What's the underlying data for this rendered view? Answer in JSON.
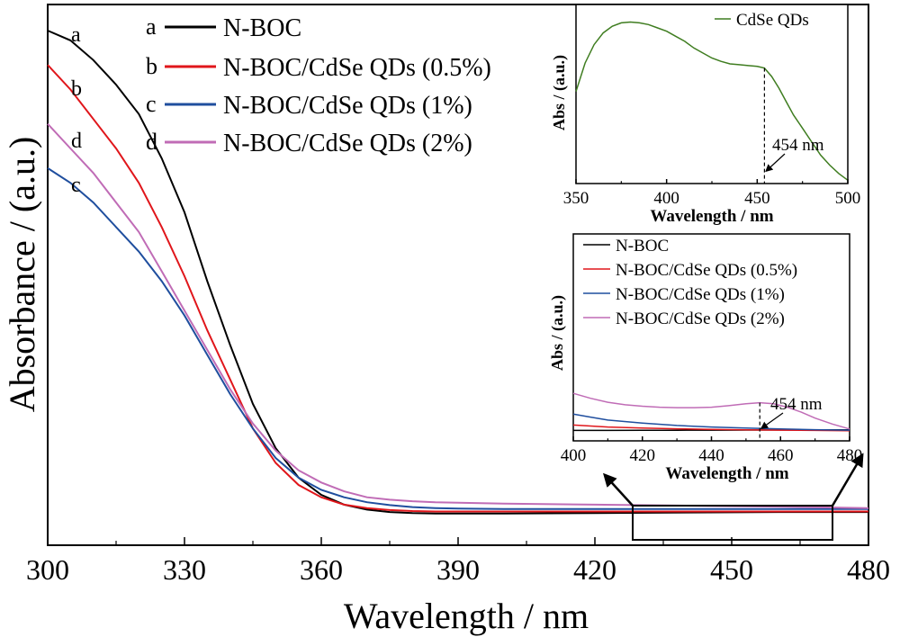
{
  "chart_data": [
    {
      "type": "line",
      "xlabel": "Wavelength / nm",
      "ylabel": "Absorbance / (a.u.)",
      "xlim": [
        300,
        480
      ],
      "xticks": [
        "300",
        "330",
        "360",
        "390",
        "420",
        "450",
        "480"
      ],
      "ylim": [
        0,
        1
      ],
      "grid": false,
      "legend": "top-left",
      "legend_entries": [
        {
          "key": "a",
          "label": "N-BOC"
        },
        {
          "key": "b",
          "label": "N-BOC/CdSe QDs (0.5%)"
        },
        {
          "key": "c",
          "label": "N-BOC/CdSe QDs (1%)"
        },
        {
          "key": "d",
          "label": "N-BOC/CdSe QDs (2%)"
        }
      ],
      "series": [
        {
          "name": "N-BOC",
          "tag": "a",
          "color": "#000000",
          "x": [
            300,
            305,
            310,
            315,
            320,
            325,
            330,
            335,
            340,
            345,
            350,
            355,
            360,
            365,
            370,
            375,
            380,
            385,
            390,
            400,
            420,
            440,
            460,
            480
          ],
          "y": [
            1.0,
            0.98,
            0.94,
            0.89,
            0.83,
            0.74,
            0.63,
            0.49,
            0.36,
            0.24,
            0.15,
            0.09,
            0.055,
            0.035,
            0.025,
            0.02,
            0.018,
            0.017,
            0.017,
            0.017,
            0.018,
            0.019,
            0.02,
            0.02
          ]
        },
        {
          "name": "N-BOC/CdSe QDs (0.5%)",
          "tag": "b",
          "color": "#e0161b",
          "x": [
            300,
            305,
            310,
            315,
            320,
            325,
            330,
            335,
            340,
            345,
            350,
            355,
            360,
            365,
            370,
            375,
            380,
            385,
            390,
            400,
            420,
            440,
            460,
            480
          ],
          "y": [
            0.93,
            0.88,
            0.82,
            0.76,
            0.69,
            0.6,
            0.5,
            0.39,
            0.29,
            0.19,
            0.12,
            0.075,
            0.05,
            0.035,
            0.028,
            0.024,
            0.022,
            0.021,
            0.021,
            0.021,
            0.021,
            0.021,
            0.021,
            0.021
          ]
        },
        {
          "name": "N-BOC/CdSe QDs (1%)",
          "tag": "c",
          "color": "#1f4e9e",
          "x": [
            300,
            305,
            310,
            315,
            320,
            325,
            330,
            335,
            340,
            345,
            350,
            355,
            360,
            365,
            370,
            375,
            380,
            385,
            390,
            400,
            420,
            440,
            460,
            480
          ],
          "y": [
            0.72,
            0.69,
            0.65,
            0.6,
            0.55,
            0.49,
            0.42,
            0.34,
            0.26,
            0.19,
            0.13,
            0.09,
            0.065,
            0.05,
            0.04,
            0.034,
            0.03,
            0.028,
            0.027,
            0.026,
            0.026,
            0.026,
            0.026,
            0.026
          ]
        },
        {
          "name": "N-BOC/CdSe QDs (2%)",
          "tag": "d",
          "color": "#c06cb6",
          "x": [
            300,
            305,
            310,
            315,
            320,
            325,
            330,
            335,
            340,
            345,
            350,
            355,
            360,
            365,
            370,
            375,
            380,
            385,
            390,
            400,
            420,
            440,
            460,
            480
          ],
          "y": [
            0.81,
            0.76,
            0.71,
            0.65,
            0.59,
            0.51,
            0.43,
            0.35,
            0.27,
            0.2,
            0.145,
            0.105,
            0.08,
            0.062,
            0.05,
            0.045,
            0.042,
            0.04,
            0.039,
            0.037,
            0.035,
            0.033,
            0.031,
            0.028
          ]
        }
      ],
      "zoom_box_x": [
        428,
        471
      ]
    },
    {
      "type": "line",
      "xlabel": "Wavelength / nm",
      "ylabel": "Abs / (a.u.)",
      "xlim": [
        350,
        500
      ],
      "xticks": [
        "350",
        "400",
        "450",
        "500"
      ],
      "ylim": [
        0,
        1
      ],
      "legend": "top-right",
      "annotation": {
        "text": "454 nm",
        "x": 454
      },
      "series": [
        {
          "name": "CdSe QDs",
          "color": "#3f7d20",
          "x": [
            350,
            355,
            360,
            365,
            370,
            375,
            380,
            385,
            390,
            395,
            400,
            405,
            410,
            415,
            420,
            425,
            430,
            435,
            440,
            445,
            450,
            454,
            458,
            462,
            466,
            470,
            475,
            480,
            485,
            490,
            495,
            500
          ],
          "y": [
            0.55,
            0.72,
            0.83,
            0.9,
            0.94,
            0.96,
            0.965,
            0.96,
            0.95,
            0.93,
            0.91,
            0.88,
            0.85,
            0.81,
            0.78,
            0.75,
            0.73,
            0.715,
            0.71,
            0.705,
            0.7,
            0.69,
            0.64,
            0.57,
            0.49,
            0.41,
            0.33,
            0.25,
            0.17,
            0.11,
            0.06,
            0.02
          ]
        }
      ]
    },
    {
      "type": "line",
      "xlabel": "Wavelength / nm",
      "ylabel": "Abs / (a.u.)",
      "xlim": [
        400,
        480
      ],
      "xticks": [
        "400",
        "420",
        "440",
        "460",
        "480"
      ],
      "ylim": [
        0,
        1
      ],
      "legend": "top-left",
      "annotation": {
        "text": "454 nm",
        "x": 454
      },
      "series": [
        {
          "name": "N-BOC",
          "color": "#000000",
          "x": [
            400,
            410,
            420,
            430,
            440,
            450,
            460,
            470,
            480
          ],
          "y": [
            0.105,
            0.105,
            0.106,
            0.107,
            0.108,
            0.109,
            0.11,
            0.111,
            0.112
          ]
        },
        {
          "name": "N-BOC/CdSe QDs (0.5%)",
          "color": "#e0161b",
          "x": [
            400,
            405,
            410,
            420,
            430,
            440,
            450,
            460,
            470,
            480
          ],
          "y": [
            0.16,
            0.15,
            0.14,
            0.13,
            0.122,
            0.116,
            0.112,
            0.108,
            0.105,
            0.103
          ]
        },
        {
          "name": "N-BOC/CdSe QDs (1%)",
          "color": "#1f4e9e",
          "x": [
            400,
            405,
            410,
            420,
            430,
            440,
            450,
            460,
            470,
            480
          ],
          "y": [
            0.27,
            0.24,
            0.21,
            0.18,
            0.155,
            0.14,
            0.13,
            0.12,
            0.113,
            0.108
          ]
        },
        {
          "name": "N-BOC/CdSe QDs (2%)",
          "color": "#c06cb6",
          "x": [
            400,
            405,
            410,
            415,
            420,
            425,
            430,
            435,
            440,
            445,
            450,
            454,
            458,
            462,
            466,
            470,
            475,
            480
          ],
          "y": [
            0.48,
            0.43,
            0.39,
            0.365,
            0.35,
            0.34,
            0.335,
            0.335,
            0.34,
            0.355,
            0.375,
            0.385,
            0.375,
            0.34,
            0.29,
            0.23,
            0.17,
            0.12
          ]
        }
      ]
    }
  ]
}
